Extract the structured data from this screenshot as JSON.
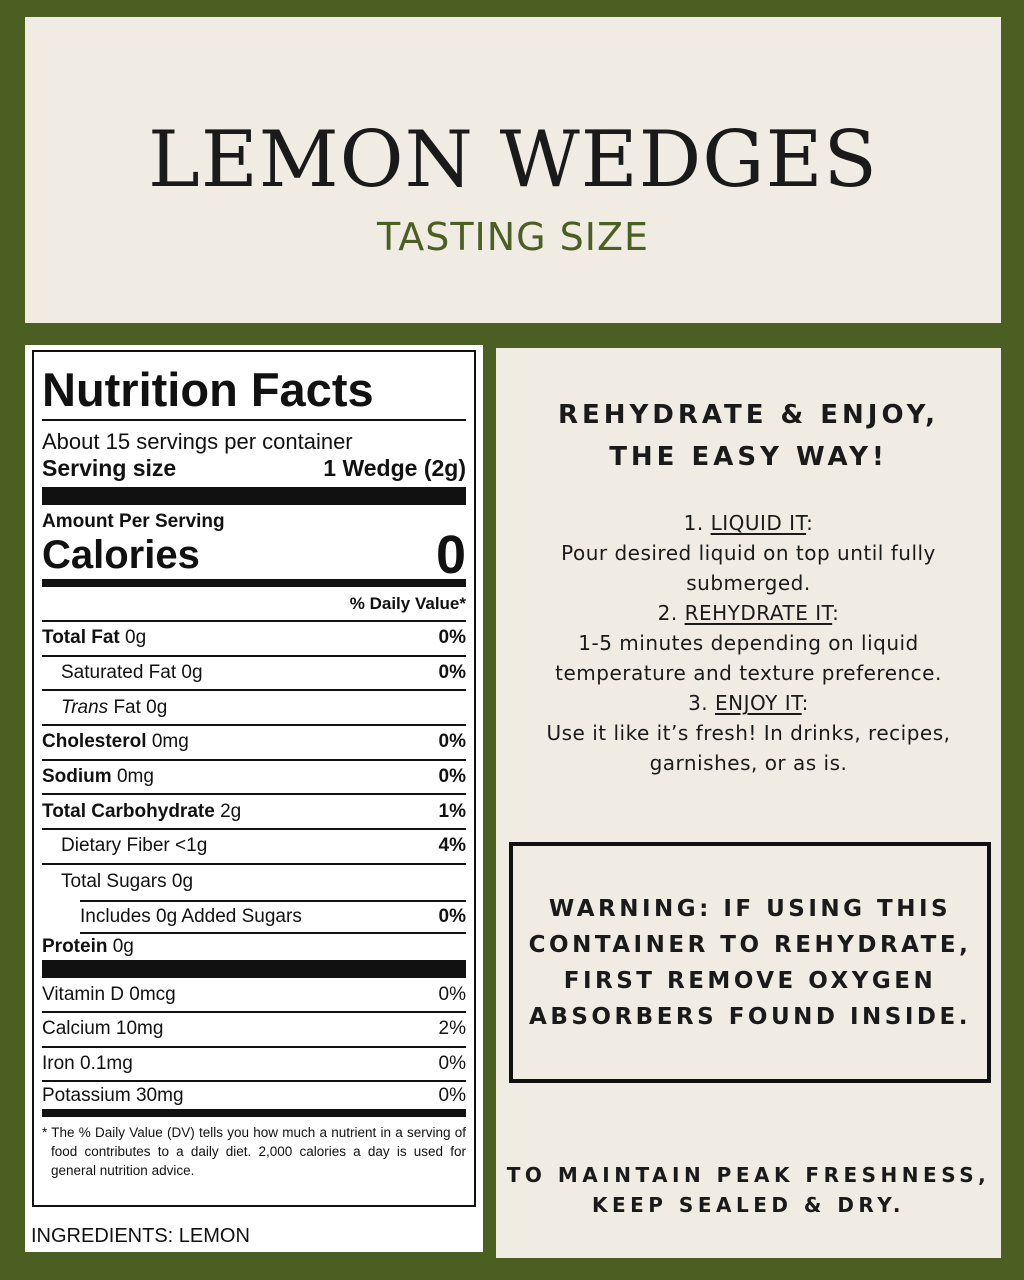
{
  "header": {
    "title": "LEMON WEDGES",
    "subtitle": "TASTING SIZE"
  },
  "nutrition": {
    "title": "Nutrition Facts",
    "servings": "About 15 servings per container",
    "serving_size_label": "Serving size",
    "serving_size_value": "1 Wedge (2g)",
    "amount_per_serving": "Amount Per Serving",
    "calories_label": "Calories",
    "calories_value": "0",
    "daily_value_header": "% Daily Value*",
    "rows": [
      {
        "name": "Total Fat",
        "amount": "0g",
        "dv": "0%"
      },
      {
        "name": "Saturated Fat",
        "amount": "0g",
        "dv": "0%"
      },
      {
        "name": "Trans",
        "suffix": "Fat 0g",
        "dv": ""
      },
      {
        "name": "Cholesterol",
        "amount": "0mg",
        "dv": "0%"
      },
      {
        "name": "Sodium",
        "amount": "0mg",
        "dv": "0%"
      },
      {
        "name": "Total Carbohydrate",
        "amount": "2g",
        "dv": "1%"
      },
      {
        "name": "Dietary Fiber",
        "amount": "<1g",
        "dv": "4%"
      },
      {
        "name": "Total Sugars",
        "amount": "0g",
        "dv": ""
      },
      {
        "name": "Includes 0g Added Sugars",
        "amount": "",
        "dv": "0%"
      },
      {
        "name": "Protein",
        "amount": "0g",
        "dv": ""
      }
    ],
    "vitamins": [
      {
        "label": "Vitamin D 0mcg",
        "dv": "0%"
      },
      {
        "label": "Calcium 10mg",
        "dv": "2%"
      },
      {
        "label": "Iron 0.1mg",
        "dv": "0%"
      },
      {
        "label": "Potassium 30mg",
        "dv": "0%"
      }
    ],
    "footnote": "* The % Daily Value (DV) tells you how much a nutrient in a serving of food contributes to a daily diet. 2,000 calories a day is used for general nutrition advice."
  },
  "ingredients": "INGREDIENTS: LEMON",
  "instructions": {
    "heading_line1": "REHYDRATE & ENJOY,",
    "heading_line2": "THE EASY WAY!",
    "steps": [
      {
        "num": "1.",
        "title": "LIQUID IT",
        "text": "Pour desired liquid on top until fully submerged."
      },
      {
        "num": "2.",
        "title": "REHYDRATE IT",
        "text": "1-5 minutes depending on liquid temperature and texture preference."
      },
      {
        "num": "3.",
        "title": "ENJOY IT",
        "text": "Use it like it’s fresh! In drinks, recipes, garnishes, or as is."
      }
    ]
  },
  "warning": "WARNING: IF USING THIS CONTAINER TO REHYDRATE, FIRST REMOVE OXYGEN ABSORBERS FOUND INSIDE.",
  "storage_line1": "TO MAINTAIN PEAK FRESHNESS,",
  "storage_line2": "KEEP SEALED & DRY.",
  "colors": {
    "brand_green": "#4c5f22",
    "panel": "#f0ece4"
  }
}
